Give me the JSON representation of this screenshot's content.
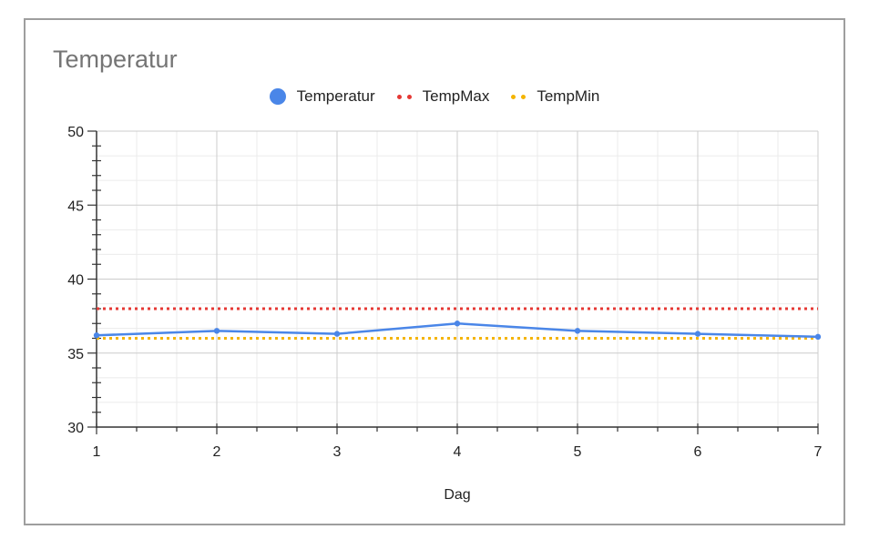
{
  "chart_data": {
    "type": "line",
    "title": "Temperatur",
    "xlabel": "Dag",
    "ylabel": "",
    "x": [
      1,
      2,
      3,
      4,
      5,
      6,
      7
    ],
    "xlim": [
      1,
      7
    ],
    "ylim": [
      30,
      50
    ],
    "y_ticks": [
      30,
      35,
      40,
      45,
      50
    ],
    "x_ticks": [
      1,
      2,
      3,
      4,
      5,
      6,
      7
    ],
    "grid": true,
    "legend_position": "top",
    "series": [
      {
        "name": "Temperatur",
        "values": [
          36.2,
          36.5,
          36.3,
          37.0,
          36.5,
          36.3,
          36.1
        ],
        "color": "#4a86e8",
        "style": "solid",
        "marker": "dot"
      },
      {
        "name": "TempMax",
        "values": [
          38,
          38,
          38,
          38,
          38,
          38,
          38
        ],
        "color": "#e53935",
        "style": "dotted",
        "marker": "dash"
      },
      {
        "name": "TempMin",
        "values": [
          36,
          36,
          36,
          36,
          36,
          36,
          36
        ],
        "color": "#f4b400",
        "style": "dotted",
        "marker": "dash"
      }
    ]
  }
}
